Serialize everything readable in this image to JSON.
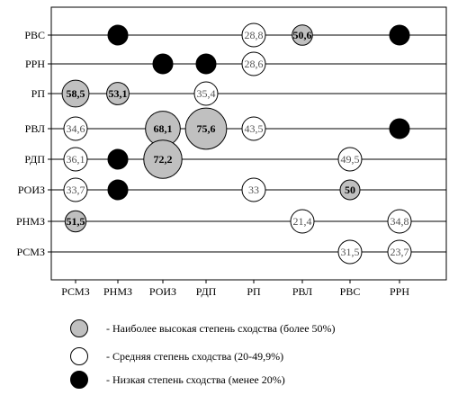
{
  "chart_data": {
    "type": "bubble-matrix",
    "x_categories": [
      "РСМЗ",
      "РНМЗ",
      "РОИЗ",
      "РДП",
      "РП",
      "РВЛ",
      "РВС",
      "РРН"
    ],
    "y_categories": [
      "РВС",
      "РРН",
      "РП",
      "РВЛ",
      "РДП",
      "РОИЗ",
      "РНМЗ",
      "РСМЗ"
    ],
    "grid": false,
    "colors": {
      "high": "#c0c0c0",
      "medium": "#ffffff",
      "low": "#000000"
    },
    "points": [
      {
        "x": "РНМЗ",
        "y": "РВС",
        "class": "low",
        "value": null,
        "label": ""
      },
      {
        "x": "РП",
        "y": "РВС",
        "class": "medium",
        "value": 28.8,
        "label": "28,8"
      },
      {
        "x": "РВЛ",
        "y": "РВС",
        "class": "high",
        "value": 50.6,
        "label": "50,6"
      },
      {
        "x": "РРН",
        "y": "РВС",
        "class": "low",
        "value": null,
        "label": ""
      },
      {
        "x": "РОИЗ",
        "y": "РРН",
        "class": "low",
        "value": null,
        "label": ""
      },
      {
        "x": "РДП",
        "y": "РРН",
        "class": "low",
        "value": null,
        "label": ""
      },
      {
        "x": "РП",
        "y": "РРН",
        "class": "medium",
        "value": 28.6,
        "label": "28,6"
      },
      {
        "x": "РСМЗ",
        "y": "РП",
        "class": "high",
        "value": 58.5,
        "label": "58,5"
      },
      {
        "x": "РНМЗ",
        "y": "РП",
        "class": "high",
        "value": 53.1,
        "label": "53,1"
      },
      {
        "x": "РДП",
        "y": "РП",
        "class": "medium",
        "value": 35.4,
        "label": "35,4"
      },
      {
        "x": "РСМЗ",
        "y": "РВЛ",
        "class": "medium",
        "value": 34.6,
        "label": "34,6"
      },
      {
        "x": "РОИЗ",
        "y": "РВЛ",
        "class": "high",
        "value": 68.1,
        "label": "68,1"
      },
      {
        "x": "РДП",
        "y": "РВЛ",
        "class": "high",
        "value": 75.6,
        "label": "75,6"
      },
      {
        "x": "РП",
        "y": "РВЛ",
        "class": "medium",
        "value": 43.5,
        "label": "43,5"
      },
      {
        "x": "РРН",
        "y": "РВЛ",
        "class": "low",
        "value": null,
        "label": ""
      },
      {
        "x": "РСМЗ",
        "y": "РДП",
        "class": "medium",
        "value": 36.1,
        "label": "36,1"
      },
      {
        "x": "РНМЗ",
        "y": "РДП",
        "class": "low",
        "value": null,
        "label": ""
      },
      {
        "x": "РОИЗ",
        "y": "РДП",
        "class": "high",
        "value": 72.2,
        "label": "72,2"
      },
      {
        "x": "РВС",
        "y": "РДП",
        "class": "medium",
        "value": 49.5,
        "label": "49,5"
      },
      {
        "x": "РСМЗ",
        "y": "РОИЗ",
        "class": "medium",
        "value": 33.7,
        "label": "33,7"
      },
      {
        "x": "РНМЗ",
        "y": "РОИЗ",
        "class": "low",
        "value": null,
        "label": ""
      },
      {
        "x": "РП",
        "y": "РОИЗ",
        "class": "medium",
        "value": 33,
        "label": "33"
      },
      {
        "x": "РВС",
        "y": "РОИЗ",
        "class": "high",
        "value": 50,
        "label": "50"
      },
      {
        "x": "РСМЗ",
        "y": "РНМЗ",
        "class": "high",
        "value": 51.5,
        "label": "51,5"
      },
      {
        "x": "РВЛ",
        "y": "РНМЗ",
        "class": "medium",
        "value": 21.4,
        "label": "21,4"
      },
      {
        "x": "РРН",
        "y": "РНМЗ",
        "class": "medium",
        "value": 34.8,
        "label": "34,8"
      },
      {
        "x": "РВС",
        "y": "РСМЗ",
        "class": "medium",
        "value": 31.5,
        "label": "31,5"
      },
      {
        "x": "РРН",
        "y": "РСМЗ",
        "class": "medium",
        "value": 23.7,
        "label": "23,7"
      }
    ]
  },
  "legend": [
    {
      "key": "high",
      "label": "- Наиболее высокая степень сходства (более 50%)"
    },
    {
      "key": "medium",
      "label": "- Средняя степень сходства (20-49,9%)"
    },
    {
      "key": "low",
      "label": "- Низкая степень сходства (менее 20%)"
    }
  ]
}
